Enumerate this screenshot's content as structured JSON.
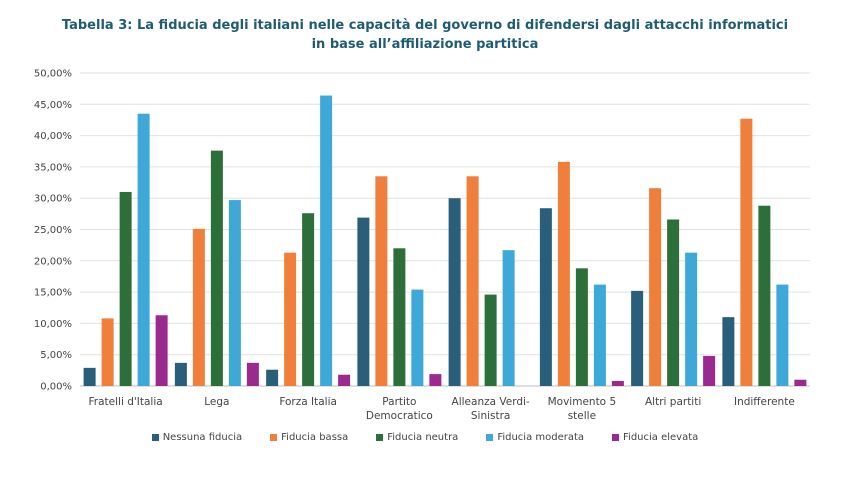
{
  "chart_data": {
    "type": "bar",
    "title_lines": [
      "Tabella 3: La fiducia degli italiani nelle capacità del governo di difendersi dagli attacchi informatici",
      "in base all’affiliazione partitica"
    ],
    "categories": [
      [
        "Fratelli d'Italia"
      ],
      [
        "Lega"
      ],
      [
        "Forza Italia"
      ],
      [
        "Partito",
        "Democratico"
      ],
      [
        "Alleanza Verdi-",
        "Sinistra"
      ],
      [
        "Movimento 5",
        "stelle"
      ],
      [
        "Altri partiti"
      ],
      [
        "Indifferente"
      ]
    ],
    "ylim": [
      0,
      50
    ],
    "yticks": [
      "0,00%",
      "5,00%",
      "10,00%",
      "15,00%",
      "20,00%",
      "25,00%",
      "30,00%",
      "35,00%",
      "40,00%",
      "45,00%",
      "50,00%"
    ],
    "grid": true,
    "legend_position": "bottom",
    "series": [
      {
        "name": "Nessuna fiducia",
        "color": "#2a5f7c",
        "values": [
          2.9,
          3.7,
          2.6,
          26.9,
          30.0,
          28.4,
          15.2,
          11.0
        ]
      },
      {
        "name": "Fiducia bassa",
        "color": "#ef7f3b",
        "values": [
          10.8,
          25.1,
          21.3,
          33.5,
          33.5,
          35.8,
          31.6,
          42.7
        ]
      },
      {
        "name": "Fiducia neutra",
        "color": "#2c6f3a",
        "values": [
          31.0,
          37.6,
          27.6,
          22.0,
          14.6,
          18.8,
          26.6,
          28.8
        ]
      },
      {
        "name": "Fiducia moderata",
        "color": "#3ea8d8",
        "values": [
          43.5,
          29.7,
          46.4,
          15.4,
          21.7,
          16.2,
          21.3,
          16.2
        ]
      },
      {
        "name": "Fiducia elevata",
        "color": "#9a2a8e",
        "values": [
          11.3,
          3.7,
          1.8,
          1.9,
          0.0,
          0.8,
          4.8,
          1.0
        ]
      }
    ]
  }
}
